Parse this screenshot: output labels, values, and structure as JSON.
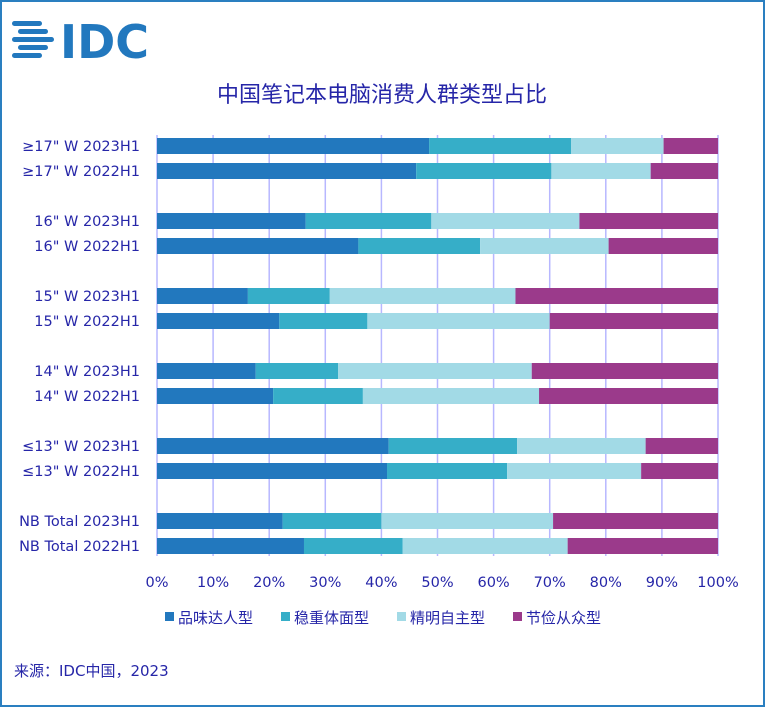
{
  "logo": {
    "text": "IDC",
    "color": "#2278be"
  },
  "colors": [
    "#2278be",
    "#36aec8",
    "#a2dae6",
    "#9b3a8b"
  ],
  "source": "来源：IDC中国，2023",
  "chart_data": {
    "type": "bar",
    "orientation": "horizontal",
    "stacked": "percent",
    "title": "中国笔记本电脑消费人群类型占比",
    "categories": [
      "≥17\" W 2023H1",
      "≥17\" W 2022H1",
      "16\" W 2023H1",
      "16\" W 2022H1",
      "15\" W 2023H1",
      "15\" W 2022H1",
      "14\" W 2023H1",
      "14\" W 2022H1",
      "≤13\" W 2023H1",
      "≤13\" W 2022H1",
      "NB Total 2023H1",
      "NB Total 2022H1"
    ],
    "series": [
      {
        "name": "品味达人型",
        "values": [
          48.5,
          46.2,
          26.5,
          35.9,
          16.2,
          21.8,
          17.6,
          20.7,
          41.3,
          41.0,
          22.4,
          26.2
        ]
      },
      {
        "name": "稳重体面型",
        "values": [
          25.3,
          24.1,
          22.4,
          21.7,
          14.6,
          15.7,
          14.7,
          16.0,
          22.9,
          21.4,
          17.6,
          17.6
        ]
      },
      {
        "name": "精明自主型",
        "values": [
          16.5,
          17.7,
          26.4,
          22.9,
          33.1,
          32.5,
          34.5,
          31.4,
          22.9,
          23.9,
          30.6,
          29.4
        ]
      },
      {
        "name": "节俭从众型",
        "values": [
          9.7,
          12.0,
          24.7,
          19.5,
          36.1,
          30.0,
          33.2,
          31.9,
          12.9,
          13.7,
          29.4,
          26.8
        ]
      }
    ],
    "xticks": [
      "0%",
      "10%",
      "20%",
      "30%",
      "40%",
      "50%",
      "60%",
      "70%",
      "80%",
      "90%",
      "100%"
    ],
    "xlim": [
      0,
      100
    ],
    "grid": true,
    "legend": "bottom"
  }
}
